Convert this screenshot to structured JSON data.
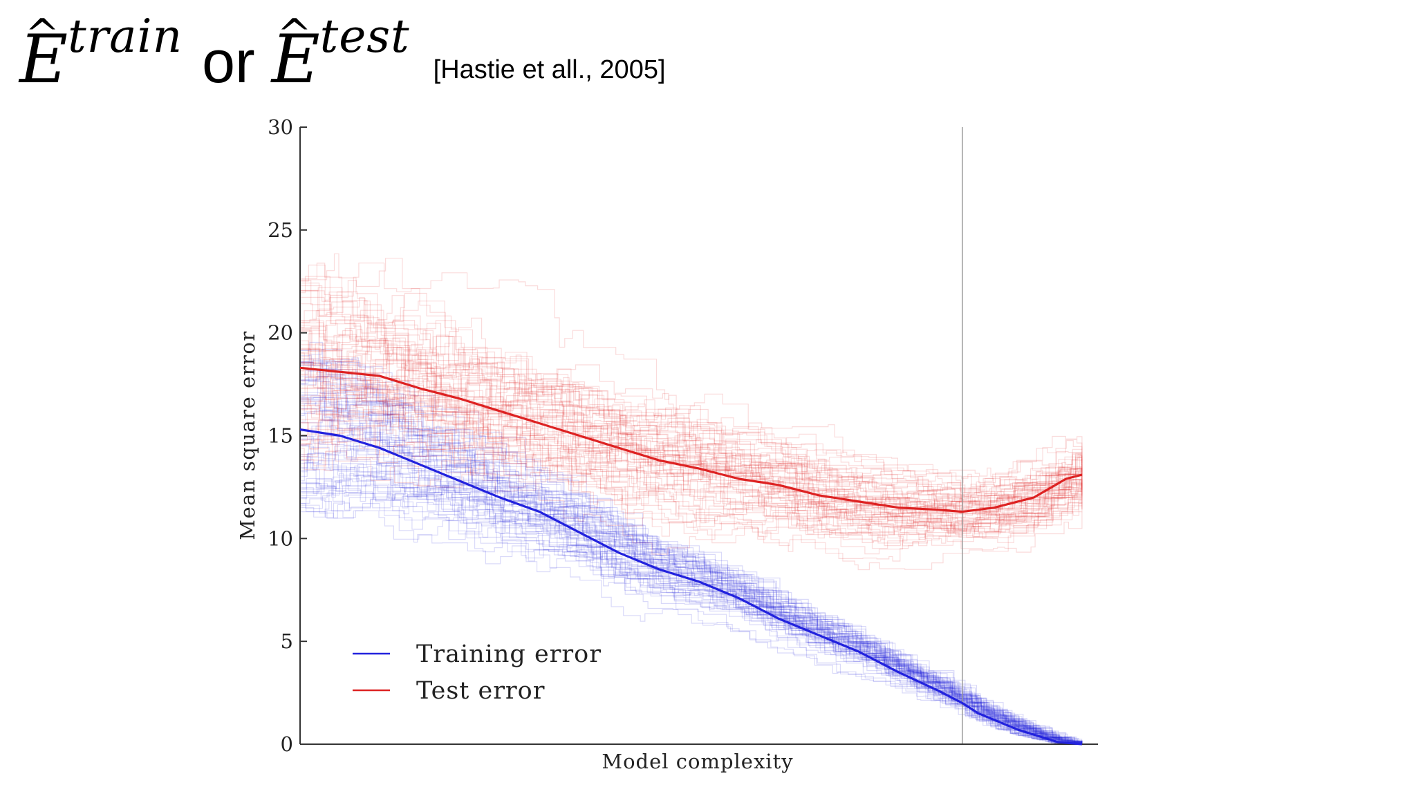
{
  "slide_title": {
    "term_train_symbol": "E",
    "term_train_superscript": "train",
    "connector": "or",
    "term_test_symbol": "E",
    "term_test_superscript": "test",
    "citation": "[Hastie et all., 2005]"
  },
  "chart_data": {
    "type": "line",
    "title": "",
    "xlabel": "Model complexity",
    "ylabel": "Mean square error",
    "xlim": [
      0,
      1
    ],
    "ylim": [
      0,
      30
    ],
    "yticks": [
      0,
      5,
      10,
      15,
      20,
      25,
      30
    ],
    "ytick_labels": [
      "0",
      "5",
      "10",
      "15",
      "20",
      "25",
      "30"
    ],
    "grid": false,
    "legend_position": "bottom-left",
    "vertical_marker_x": 0.83,
    "series": [
      {
        "name": "Training error",
        "color": "#2222dd",
        "x": [
          0.0,
          0.05,
          0.1,
          0.15,
          0.2,
          0.25,
          0.3,
          0.35,
          0.4,
          0.45,
          0.5,
          0.55,
          0.6,
          0.65,
          0.7,
          0.75,
          0.8,
          0.83,
          0.85,
          0.9,
          0.95,
          0.98
        ],
        "values": [
          15.3,
          15.0,
          14.4,
          13.6,
          12.8,
          12.0,
          11.3,
          10.3,
          9.3,
          8.5,
          7.9,
          7.1,
          6.1,
          5.3,
          4.5,
          3.5,
          2.6,
          2.0,
          1.5,
          0.7,
          0.1,
          0.0
        ]
      },
      {
        "name": "Test error",
        "color": "#dd2222",
        "x": [
          0.0,
          0.05,
          0.1,
          0.15,
          0.2,
          0.25,
          0.3,
          0.35,
          0.4,
          0.45,
          0.5,
          0.55,
          0.6,
          0.65,
          0.7,
          0.75,
          0.8,
          0.83,
          0.87,
          0.92,
          0.96,
          0.98
        ],
        "values": [
          18.3,
          18.1,
          17.9,
          17.3,
          16.8,
          16.2,
          15.6,
          15.0,
          14.4,
          13.8,
          13.4,
          12.9,
          12.6,
          12.1,
          11.8,
          11.5,
          11.4,
          11.3,
          11.5,
          12.0,
          12.9,
          13.1
        ]
      }
    ]
  }
}
